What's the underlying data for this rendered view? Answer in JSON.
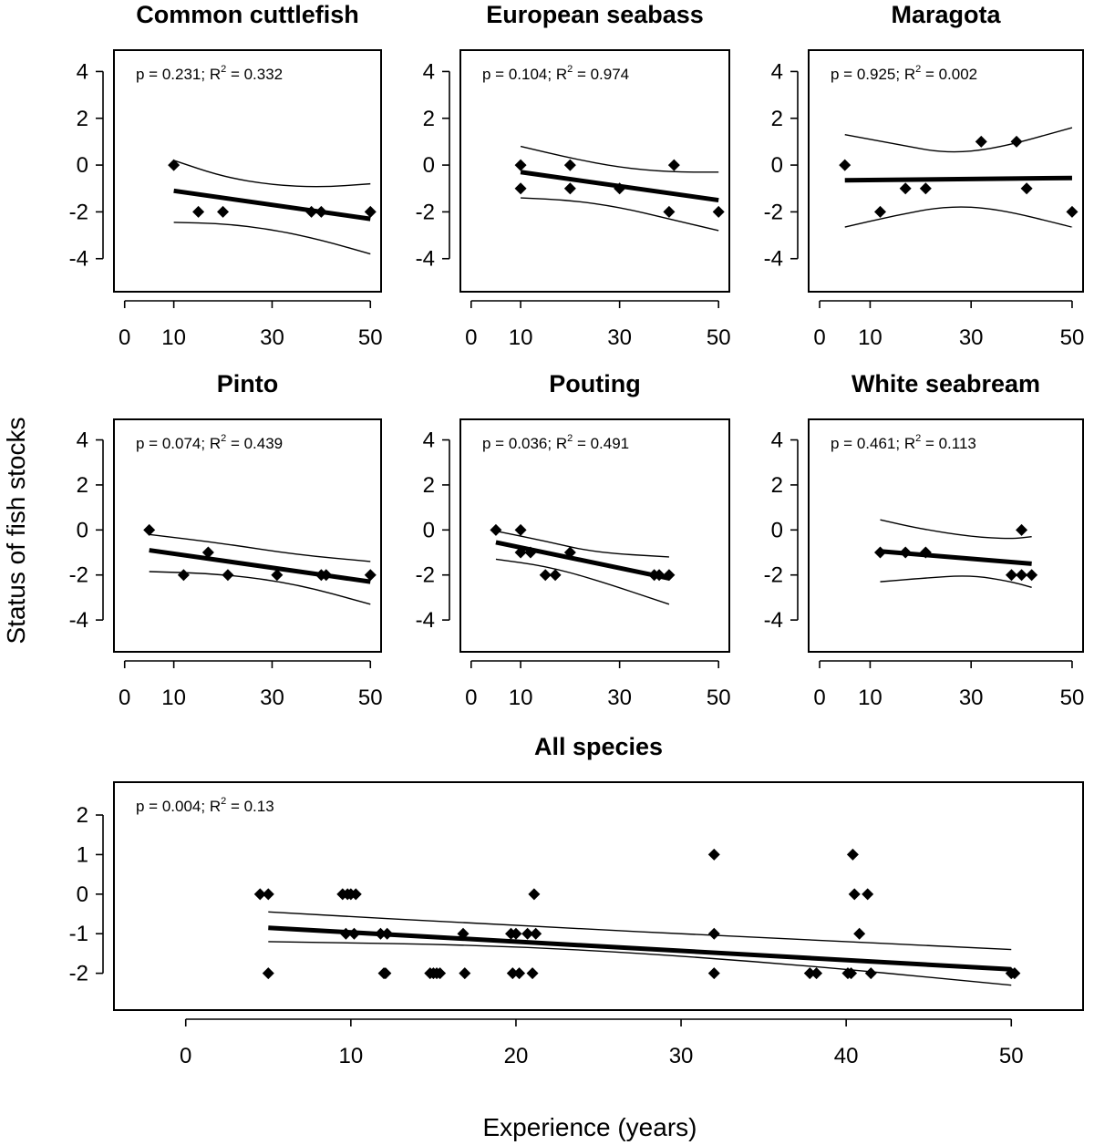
{
  "figure": {
    "ylabel": "Status of fish stocks",
    "xlabel": "Experience (years)"
  },
  "chart_data": [
    {
      "type": "scatter",
      "title": "Common cuttlefish",
      "annotation": {
        "p": "p = 0.231; R",
        "sup": "2",
        "r2": " = 0.332"
      },
      "xlim": [
        0,
        50
      ],
      "ylim": [
        -5,
        4.5
      ],
      "xticks": [
        "0",
        "10",
        "30",
        "50"
      ],
      "yticks": [
        "4",
        "2",
        "0",
        "-2",
        "-4"
      ],
      "points": [
        [
          10,
          0
        ],
        [
          15,
          -2
        ],
        [
          20,
          -2
        ],
        [
          38,
          -2
        ],
        [
          40,
          -2
        ],
        [
          50,
          -2
        ]
      ],
      "fit": [
        [
          10,
          -1.1
        ],
        [
          50,
          -2.3
        ]
      ],
      "ci_upper": [
        [
          10,
          0.2
        ],
        [
          20,
          -0.5
        ],
        [
          30,
          -0.85
        ],
        [
          40,
          -0.95
        ],
        [
          50,
          -0.8
        ]
      ],
      "ci_lower": [
        [
          10,
          -2.45
        ],
        [
          20,
          -2.5
        ],
        [
          30,
          -2.75
        ],
        [
          40,
          -3.2
        ],
        [
          50,
          -3.8
        ]
      ]
    },
    {
      "type": "scatter",
      "title": "European seabass",
      "annotation": {
        "p": "p = 0.104; R",
        "sup": "2",
        "r2": " = 0.974"
      },
      "xlim": [
        0,
        50
      ],
      "ylim": [
        -5,
        4.5
      ],
      "xticks": [
        "0",
        "10",
        "30",
        "50"
      ],
      "yticks": [
        "4",
        "2",
        "0",
        "-2",
        "-4"
      ],
      "points": [
        [
          10,
          0
        ],
        [
          10,
          -1
        ],
        [
          20,
          0
        ],
        [
          20,
          -1
        ],
        [
          30,
          -1
        ],
        [
          40,
          -2
        ],
        [
          41,
          0
        ],
        [
          50,
          -2
        ]
      ],
      "fit": [
        [
          10,
          -0.3
        ],
        [
          50,
          -1.5
        ]
      ],
      "ci_upper": [
        [
          10,
          0.8
        ],
        [
          20,
          0.3
        ],
        [
          30,
          -0.1
        ],
        [
          40,
          -0.3
        ],
        [
          50,
          -0.3
        ]
      ],
      "ci_lower": [
        [
          10,
          -1.4
        ],
        [
          20,
          -1.5
        ],
        [
          30,
          -1.8
        ],
        [
          40,
          -2.3
        ],
        [
          50,
          -2.8
        ]
      ]
    },
    {
      "type": "scatter",
      "title": "Maragota",
      "annotation": {
        "p": "p = 0.925; R",
        "sup": "2",
        "r2": " = 0.002"
      },
      "xlim": [
        0,
        50
      ],
      "ylim": [
        -5,
        4.5
      ],
      "xticks": [
        "0",
        "10",
        "30",
        "50"
      ],
      "yticks": [
        "4",
        "2",
        "0",
        "-2",
        "-4"
      ],
      "points": [
        [
          5,
          0
        ],
        [
          12,
          -2
        ],
        [
          17,
          -1
        ],
        [
          21,
          -1
        ],
        [
          32,
          1
        ],
        [
          39,
          1
        ],
        [
          41,
          -1
        ],
        [
          50,
          -2
        ]
      ],
      "fit": [
        [
          5,
          -0.65
        ],
        [
          50,
          -0.55
        ]
      ],
      "ci_upper": [
        [
          5,
          1.3
        ],
        [
          15,
          0.9
        ],
        [
          25,
          0.5
        ],
        [
          35,
          0.7
        ],
        [
          50,
          1.6
        ]
      ],
      "ci_lower": [
        [
          5,
          -2.65
        ],
        [
          15,
          -2.15
        ],
        [
          25,
          -1.75
        ],
        [
          35,
          -1.85
        ],
        [
          50,
          -2.65
        ]
      ]
    },
    {
      "type": "scatter",
      "title": "Pinto",
      "annotation": {
        "p": "p = 0.074; R",
        "sup": "2",
        "r2": " = 0.439"
      },
      "xlim": [
        0,
        50
      ],
      "ylim": [
        -5,
        4.5
      ],
      "xticks": [
        "0",
        "10",
        "30",
        "50"
      ],
      "yticks": [
        "4",
        "2",
        "0",
        "-2",
        "-4"
      ],
      "points": [
        [
          5,
          0
        ],
        [
          12,
          -2
        ],
        [
          17,
          -1
        ],
        [
          21,
          -2
        ],
        [
          31,
          -2
        ],
        [
          40,
          -2
        ],
        [
          41,
          -2
        ],
        [
          50,
          -2
        ]
      ],
      "fit": [
        [
          5,
          -0.9
        ],
        [
          50,
          -2.3
        ]
      ],
      "ci_upper": [
        [
          5,
          -0.2
        ],
        [
          20,
          -0.6
        ],
        [
          35,
          -1.1
        ],
        [
          50,
          -1.4
        ]
      ],
      "ci_lower": [
        [
          5,
          -1.85
        ],
        [
          20,
          -1.95
        ],
        [
          35,
          -2.4
        ],
        [
          50,
          -3.3
        ]
      ]
    },
    {
      "type": "scatter",
      "title": "Pouting",
      "annotation": {
        "p": "p = 0.036; R",
        "sup": "2",
        "r2": " = 0.491"
      },
      "xlim": [
        0,
        50
      ],
      "ylim": [
        -5,
        4.5
      ],
      "xticks": [
        "0",
        "10",
        "30",
        "50"
      ],
      "yticks": [
        "4",
        "2",
        "0",
        "-2",
        "-4"
      ],
      "points": [
        [
          5,
          0
        ],
        [
          10,
          0
        ],
        [
          10,
          -1
        ],
        [
          12,
          -1
        ],
        [
          15,
          -2
        ],
        [
          17,
          -2
        ],
        [
          20,
          -1
        ],
        [
          37,
          -2
        ],
        [
          38,
          -2
        ],
        [
          40,
          -2
        ]
      ],
      "fit": [
        [
          5,
          -0.55
        ],
        [
          40,
          -2.15
        ]
      ],
      "ci_upper": [
        [
          5,
          -0.05
        ],
        [
          15,
          -0.5
        ],
        [
          25,
          -1.0
        ],
        [
          40,
          -1.2
        ]
      ],
      "ci_lower": [
        [
          5,
          -1.3
        ],
        [
          15,
          -1.6
        ],
        [
          25,
          -2.2
        ],
        [
          40,
          -3.3
        ]
      ]
    },
    {
      "type": "scatter",
      "title": "White seabream",
      "annotation": {
        "p": "p = 0.461; R",
        "sup": "2",
        "r2": " = 0.113"
      },
      "xlim": [
        0,
        50
      ],
      "ylim": [
        -5,
        4.5
      ],
      "xticks": [
        "0",
        "10",
        "30",
        "50"
      ],
      "yticks": [
        "4",
        "2",
        "0",
        "-2",
        "-4"
      ],
      "points": [
        [
          12,
          -1
        ],
        [
          17,
          -1
        ],
        [
          21,
          -1
        ],
        [
          38,
          -2
        ],
        [
          40,
          0
        ],
        [
          40,
          -2
        ],
        [
          42,
          -2
        ]
      ],
      "fit": [
        [
          12,
          -0.95
        ],
        [
          42,
          -1.5
        ]
      ],
      "ci_upper": [
        [
          12,
          0.45
        ],
        [
          20,
          0.05
        ],
        [
          30,
          -0.3
        ],
        [
          38,
          -0.4
        ],
        [
          42,
          -0.3
        ]
      ],
      "ci_lower": [
        [
          12,
          -2.3
        ],
        [
          20,
          -2.15
        ],
        [
          30,
          -2.0
        ],
        [
          38,
          -2.3
        ],
        [
          42,
          -2.55
        ]
      ]
    },
    {
      "type": "scatter",
      "title": "All species",
      "annotation": {
        "p": "p = 0.004; R",
        "sup": "2",
        "r2": " = 0.13"
      },
      "xlim": [
        -2,
        52
      ],
      "ylim": [
        -2.7,
        2.6
      ],
      "xticks": [
        "0",
        "10",
        "20",
        "30",
        "40",
        "50"
      ],
      "yticks": [
        "2",
        "1",
        "0",
        "-1",
        "-2"
      ],
      "points": [
        [
          4.5,
          0
        ],
        [
          5,
          0
        ],
        [
          5,
          -2
        ],
        [
          9.5,
          0
        ],
        [
          9.8,
          0
        ],
        [
          10,
          0
        ],
        [
          10.2,
          -1
        ],
        [
          9.7,
          -1
        ],
        [
          10.3,
          0
        ],
        [
          11.8,
          -1
        ],
        [
          12,
          -2
        ],
        [
          12.1,
          -2
        ],
        [
          12.2,
          -1
        ],
        [
          14.8,
          -2
        ],
        [
          15,
          -2
        ],
        [
          15.2,
          -2
        ],
        [
          15.4,
          -2
        ],
        [
          16.8,
          -1
        ],
        [
          16.9,
          -2
        ],
        [
          19.7,
          -1
        ],
        [
          19.8,
          -2
        ],
        [
          20,
          -1
        ],
        [
          20.2,
          -2
        ],
        [
          20.7,
          -1
        ],
        [
          21,
          -2
        ],
        [
          21.1,
          0
        ],
        [
          21.2,
          -1
        ],
        [
          32,
          1
        ],
        [
          32,
          -1
        ],
        [
          32,
          -2
        ],
        [
          37.8,
          -2
        ],
        [
          38.2,
          -2
        ],
        [
          40.1,
          -2
        ],
        [
          40.3,
          -2
        ],
        [
          40.4,
          1
        ],
        [
          40.5,
          0
        ],
        [
          40.8,
          -1
        ],
        [
          41.3,
          0
        ],
        [
          41.5,
          -2
        ],
        [
          50,
          -2
        ],
        [
          50.2,
          -2
        ]
      ],
      "fit": [
        [
          5,
          -0.85
        ],
        [
          50,
          -1.9
        ]
      ],
      "ci_upper": [
        [
          5,
          -0.45
        ],
        [
          20,
          -0.8
        ],
        [
          35,
          -1.1
        ],
        [
          50,
          -1.4
        ]
      ],
      "ci_lower": [
        [
          5,
          -1.2
        ],
        [
          20,
          -1.3
        ],
        [
          35,
          -1.7
        ],
        [
          50,
          -2.3
        ]
      ]
    }
  ]
}
